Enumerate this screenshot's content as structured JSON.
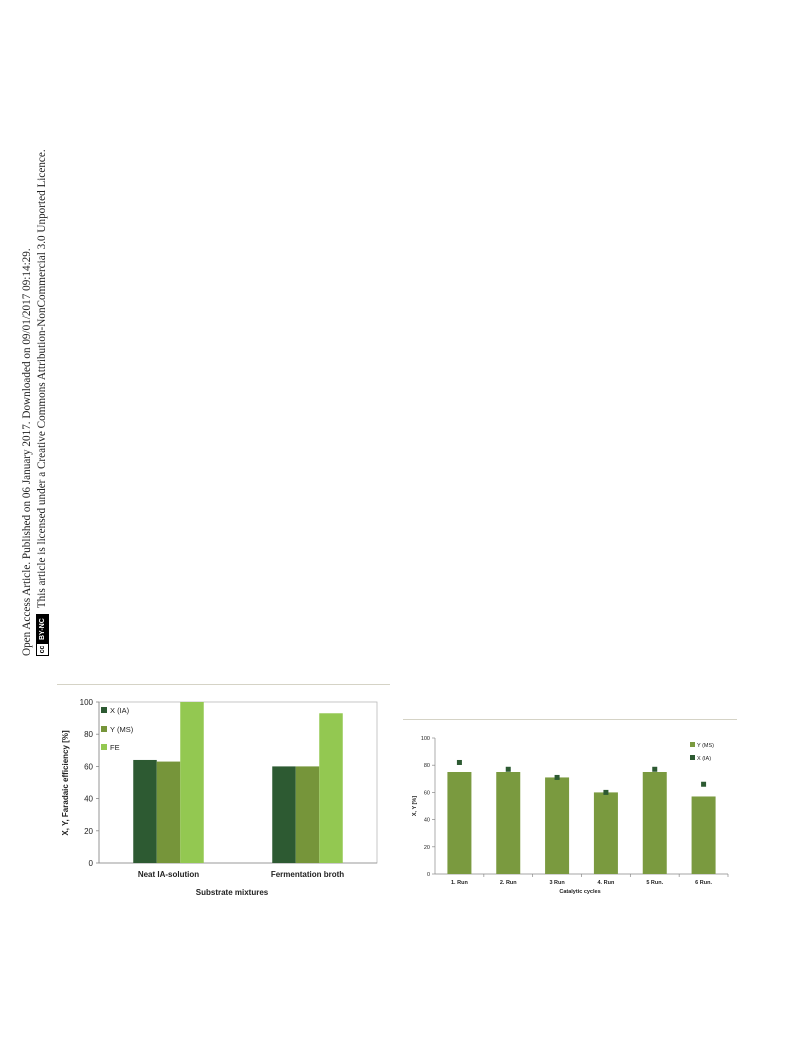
{
  "notice": {
    "line1": "Open Access Article. Published on 06 January 2017. Downloaded on 09/01/2017 09:14:29.",
    "badge_cc": "cc",
    "badge_text": "BY-NC",
    "line2": "This article is licensed under a Creative Commons Attribution-NonCommercial 3.0 Unported Licence."
  },
  "colors": {
    "dark_green": "#2d5a32",
    "mid_green": "#76953a",
    "light_green": "#93c851",
    "y_bar": "#7a9a3f"
  },
  "chart_data": [
    {
      "type": "bar",
      "categories": [
        "Neat IA-solution",
        "Fermentation broth"
      ],
      "series": [
        {
          "name": "X (IA)",
          "values": [
            64,
            60
          ]
        },
        {
          "name": "Y (MS)",
          "values": [
            63,
            60
          ]
        },
        {
          "name": "FE",
          "values": [
            100,
            93
          ]
        }
      ],
      "xlabel": "Substrate mixtures",
      "ylabel": "X, Y, Faradaic efficiency [%]",
      "ylim": [
        0,
        100
      ],
      "yticks": [
        "0",
        "20",
        "40",
        "60",
        "80",
        "100"
      ],
      "legend": "top-left",
      "grid": false
    },
    {
      "type": "bar",
      "categories": [
        "1. Run",
        "2. Run",
        "3 Run",
        "4. Run",
        "5 Run.",
        "6 Run."
      ],
      "series": [
        {
          "name": "Y (MS)",
          "type": "bar",
          "values": [
            75,
            75,
            71,
            60,
            75,
            57
          ]
        },
        {
          "name": "X (IA)",
          "type": "scatter",
          "values": [
            82,
            77,
            71,
            60,
            77,
            66
          ]
        }
      ],
      "xlabel": "Catalytic cycles",
      "ylabel": "X, Y [%]",
      "ylim": [
        0,
        100
      ],
      "yticks": [
        "0",
        "20",
        "40",
        "60",
        "80",
        "100"
      ],
      "legend": "top-right",
      "grid": false
    }
  ]
}
